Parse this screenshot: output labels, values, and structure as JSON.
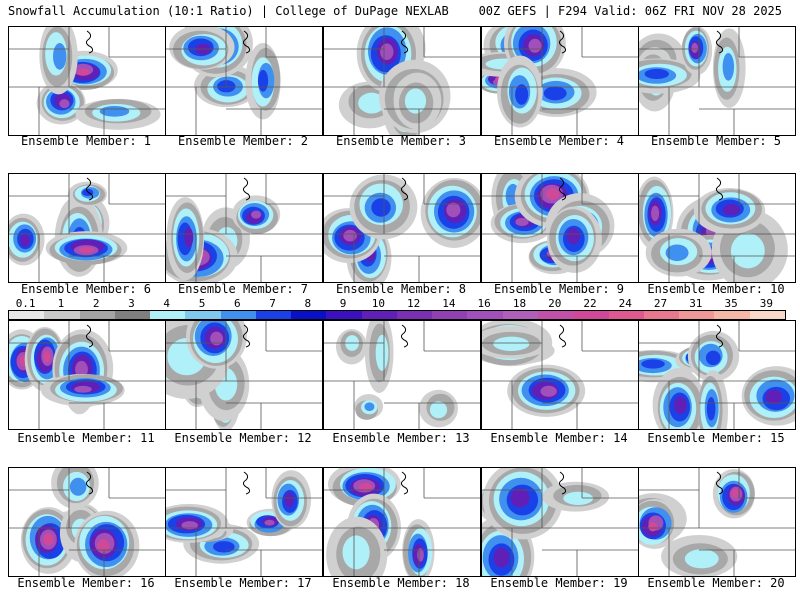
{
  "header": {
    "left": "Snowfall Accumulation (10:1 Ratio) | College of DuPage NEXLAB",
    "right": "00Z GEFS | F294 Valid: 06Z FRI NOV 28 2025"
  },
  "legend": {
    "values": [
      "0.1",
      "1",
      "2",
      "3",
      "4",
      "5",
      "6",
      "7",
      "8",
      "9",
      "10",
      "12",
      "14",
      "16",
      "18",
      "20",
      "22",
      "24",
      "27",
      "31",
      "35",
      "39"
    ],
    "colors": [
      "#e8e8e8",
      "#c8c8c8",
      "#a4a4a4",
      "#7f7f7f",
      "#b0f0f8",
      "#80c8f0",
      "#4090f0",
      "#1a40e8",
      "#0a10c8",
      "#3a10c0",
      "#6020b8",
      "#7a30b0",
      "#9040b0",
      "#a050b8",
      "#b060b8",
      "#c050a8",
      "#d04898",
      "#e05890",
      "#e87890",
      "#f09898",
      "#f4b8a8",
      "#f8d8c8"
    ]
  },
  "members": [
    {
      "label": "Ensemble Member: 1"
    },
    {
      "label": "Ensemble Member: 2"
    },
    {
      "label": "Ensemble Member: 3"
    },
    {
      "label": "Ensemble Member: 4"
    },
    {
      "label": "Ensemble Member: 5"
    },
    {
      "label": "Ensemble Member: 6"
    },
    {
      "label": "Ensemble Member: 7"
    },
    {
      "label": "Ensemble Member: 8"
    },
    {
      "label": "Ensemble Member: 9"
    },
    {
      "label": "Ensemble Member: 10"
    },
    {
      "label": "Ensemble Member: 11"
    },
    {
      "label": "Ensemble Member: 12"
    },
    {
      "label": "Ensemble Member: 13"
    },
    {
      "label": "Ensemble Member: 14"
    },
    {
      "label": "Ensemble Member: 15"
    },
    {
      "label": "Ensemble Member: 16"
    },
    {
      "label": "Ensemble Member: 17"
    },
    {
      "label": "Ensemble Member: 18"
    },
    {
      "label": "Ensemble Member: 19"
    },
    {
      "label": "Ensemble Member: 20"
    }
  ]
}
